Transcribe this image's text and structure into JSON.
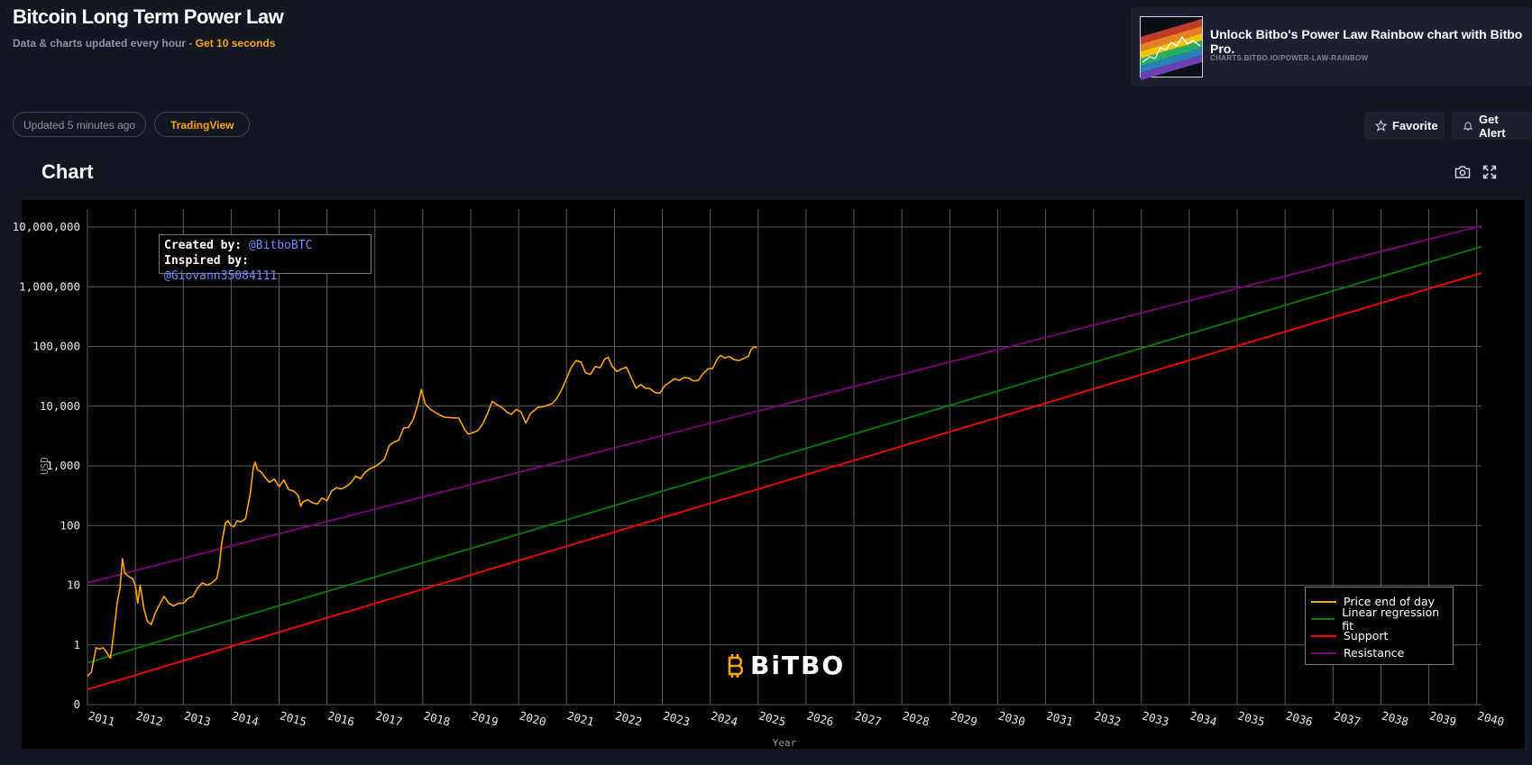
{
  "header": {
    "title": "Bitcoin Long Term Power Law",
    "subtitle_prefix": "Data & charts updated every hour - ",
    "subtitle_highlight": "Get 10 seconds"
  },
  "promo": {
    "title": "Unlock Bitbo's Power Law Rainbow chart with Bitbo Pro.",
    "url": "CHARTS.BITBO.IO/POWER-LAW-RAINBOW"
  },
  "toolbar": {
    "updated_label": "Updated 5 minutes ago",
    "tradingview_label": "TradingView",
    "favorite_label": "Favorite",
    "alert_label": "Get Alert"
  },
  "section": {
    "title": "Chart"
  },
  "icons": {
    "camera": "camera-icon",
    "fullscreen": "fullscreen-icon",
    "star": "star-icon",
    "bell": "bell-icon"
  },
  "colors": {
    "background": "#131722",
    "accent": "#f7a600",
    "price": "#ffa500",
    "regression": "#008000",
    "support": "#ff0000",
    "resistance": "#800080"
  },
  "credits": {
    "created_label": "Created by:",
    "created_handle": "@BitboBTC",
    "inspired_label": "Inspired by:",
    "inspired_handle": "@Giovann35084111"
  },
  "watermark": {
    "text": "BiTBO"
  },
  "chart_data": {
    "type": "line",
    "title": "",
    "xlabel": "Year",
    "ylabel": "USD",
    "y_scale": "log",
    "ylim": [
      0.1,
      10000000
    ],
    "xlim": [
      2011.0,
      2040.1
    ],
    "grid": true,
    "legend_position": "bottom-right",
    "y_ticks": [
      {
        "value": 10000000,
        "label": "10,000,000"
      },
      {
        "value": 1000000,
        "label": "1,000,000"
      },
      {
        "value": 100000,
        "label": "100,000"
      },
      {
        "value": 10000,
        "label": "10,000"
      },
      {
        "value": 1000,
        "label": "1,000"
      },
      {
        "value": 100,
        "label": "100"
      },
      {
        "value": 10,
        "label": "10"
      },
      {
        "value": 1,
        "label": "1"
      },
      {
        "value": 0.1,
        "label": "0"
      }
    ],
    "x_ticks": [
      2011,
      2012,
      2013,
      2014,
      2015,
      2016,
      2017,
      2018,
      2019,
      2020,
      2021,
      2022,
      2023,
      2024,
      2025,
      2026,
      2027,
      2028,
      2029,
      2030,
      2031,
      2032,
      2033,
      2034,
      2035,
      2036,
      2037,
      2038,
      2039,
      2040
    ],
    "series": [
      {
        "name": "Price end of day",
        "color": "#ffa500",
        "points": [
          [
            2011.0,
            0.3
          ],
          [
            2011.08,
            0.35
          ],
          [
            2011.18,
            0.9
          ],
          [
            2011.25,
            0.85
          ],
          [
            2011.33,
            0.9
          ],
          [
            2011.4,
            0.75
          ],
          [
            2011.48,
            0.6
          ],
          [
            2011.55,
            1.6
          ],
          [
            2011.62,
            5
          ],
          [
            2011.68,
            9
          ],
          [
            2011.73,
            28
          ],
          [
            2011.78,
            16
          ],
          [
            2011.86,
            14
          ],
          [
            2011.94,
            13
          ],
          [
            2012.0,
            10
          ],
          [
            2012.05,
            5
          ],
          [
            2012.1,
            10
          ],
          [
            2012.18,
            4
          ],
          [
            2012.25,
            2.5
          ],
          [
            2012.33,
            2.2
          ],
          [
            2012.42,
            3.5
          ],
          [
            2012.52,
            5
          ],
          [
            2012.6,
            6.5
          ],
          [
            2012.7,
            5
          ],
          [
            2012.8,
            4.5
          ],
          [
            2012.9,
            5
          ],
          [
            2013.0,
            5
          ],
          [
            2013.1,
            6
          ],
          [
            2013.2,
            6.5
          ],
          [
            2013.3,
            9
          ],
          [
            2013.4,
            11
          ],
          [
            2013.5,
            10
          ],
          [
            2013.6,
            11
          ],
          [
            2013.7,
            13
          ],
          [
            2013.75,
            20
          ],
          [
            2013.8,
            50
          ],
          [
            2013.88,
            110
          ],
          [
            2013.93,
            120
          ],
          [
            2014.0,
            100
          ],
          [
            2014.06,
            95
          ],
          [
            2014.12,
            120
          ],
          [
            2014.2,
            115
          ],
          [
            2014.3,
            130
          ],
          [
            2014.4,
            350
          ],
          [
            2014.46,
            900
          ],
          [
            2014.5,
            1150
          ],
          [
            2014.55,
            850
          ],
          [
            2014.62,
            800
          ],
          [
            2014.7,
            650
          ],
          [
            2014.8,
            530
          ],
          [
            2014.9,
            600
          ],
          [
            2015.0,
            450
          ],
          [
            2015.1,
            580
          ],
          [
            2015.2,
            400
          ],
          [
            2015.3,
            380
          ],
          [
            2015.4,
            320
          ],
          [
            2015.45,
            210
          ],
          [
            2015.5,
            250
          ],
          [
            2015.6,
            270
          ],
          [
            2015.7,
            240
          ],
          [
            2015.8,
            230
          ],
          [
            2015.9,
            290
          ],
          [
            2016.0,
            260
          ],
          [
            2016.1,
            380
          ],
          [
            2016.2,
            430
          ],
          [
            2016.3,
            410
          ],
          [
            2016.4,
            450
          ],
          [
            2016.5,
            520
          ],
          [
            2016.6,
            670
          ],
          [
            2016.7,
            610
          ],
          [
            2016.8,
            780
          ],
          [
            2016.9,
            900
          ],
          [
            2017.0,
            970
          ],
          [
            2017.1,
            1100
          ],
          [
            2017.2,
            1300
          ],
          [
            2017.3,
            2200
          ],
          [
            2017.4,
            2500
          ],
          [
            2017.5,
            2700
          ],
          [
            2017.6,
            4300
          ],
          [
            2017.7,
            4400
          ],
          [
            2017.8,
            6000
          ],
          [
            2017.9,
            11000
          ],
          [
            2017.97,
            19000
          ],
          [
            2018.05,
            11000
          ],
          [
            2018.15,
            9000
          ],
          [
            2018.3,
            7500
          ],
          [
            2018.45,
            6500
          ],
          [
            2018.6,
            6400
          ],
          [
            2018.75,
            6300
          ],
          [
            2018.88,
            4000
          ],
          [
            2018.95,
            3400
          ],
          [
            2019.05,
            3600
          ],
          [
            2019.15,
            3900
          ],
          [
            2019.25,
            5000
          ],
          [
            2019.35,
            7500
          ],
          [
            2019.45,
            12000
          ],
          [
            2019.55,
            10500
          ],
          [
            2019.65,
            9500
          ],
          [
            2019.75,
            8000
          ],
          [
            2019.85,
            7300
          ],
          [
            2019.95,
            8800
          ],
          [
            2020.05,
            8000
          ],
          [
            2020.15,
            5200
          ],
          [
            2020.25,
            7500
          ],
          [
            2020.4,
            9500
          ],
          [
            2020.55,
            10000
          ],
          [
            2020.7,
            11000
          ],
          [
            2020.8,
            13500
          ],
          [
            2020.9,
            19000
          ],
          [
            2021.0,
            29000
          ],
          [
            2021.1,
            45000
          ],
          [
            2021.2,
            58000
          ],
          [
            2021.3,
            55000
          ],
          [
            2021.4,
            36000
          ],
          [
            2021.5,
            34000
          ],
          [
            2021.6,
            46000
          ],
          [
            2021.7,
            44000
          ],
          [
            2021.8,
            62000
          ],
          [
            2021.87,
            66000
          ],
          [
            2021.95,
            47000
          ],
          [
            2022.05,
            38000
          ],
          [
            2022.15,
            42000
          ],
          [
            2022.25,
            45000
          ],
          [
            2022.35,
            30000
          ],
          [
            2022.45,
            20000
          ],
          [
            2022.55,
            23000
          ],
          [
            2022.65,
            20000
          ],
          [
            2022.75,
            19500
          ],
          [
            2022.85,
            16800
          ],
          [
            2022.95,
            16500
          ],
          [
            2023.05,
            22000
          ],
          [
            2023.15,
            25000
          ],
          [
            2023.25,
            29000
          ],
          [
            2023.35,
            27000
          ],
          [
            2023.45,
            30000
          ],
          [
            2023.55,
            29500
          ],
          [
            2023.65,
            26500
          ],
          [
            2023.75,
            27000
          ],
          [
            2023.85,
            35000
          ],
          [
            2023.95,
            42000
          ],
          [
            2024.05,
            43000
          ],
          [
            2024.15,
            62000
          ],
          [
            2024.22,
            71000
          ],
          [
            2024.3,
            64000
          ],
          [
            2024.4,
            68000
          ],
          [
            2024.5,
            60000
          ],
          [
            2024.6,
            58000
          ],
          [
            2024.7,
            63000
          ],
          [
            2024.8,
            69000
          ],
          [
            2024.85,
            88000
          ],
          [
            2024.92,
            100000
          ],
          [
            2024.97,
            94000
          ]
        ]
      },
      {
        "name": "Linear regression fit",
        "color": "#008000",
        "points": [
          [
            2011.0,
            0.5
          ],
          [
            2040.1,
            4700000
          ]
        ]
      },
      {
        "name": "Support",
        "color": "#ff0000",
        "points": [
          [
            2011.0,
            0.18
          ],
          [
            2040.1,
            1700000
          ]
        ]
      },
      {
        "name": "Resistance",
        "color": "#800080",
        "points": [
          [
            2011.0,
            11
          ],
          [
            2040.1,
            10500000
          ]
        ]
      }
    ]
  }
}
